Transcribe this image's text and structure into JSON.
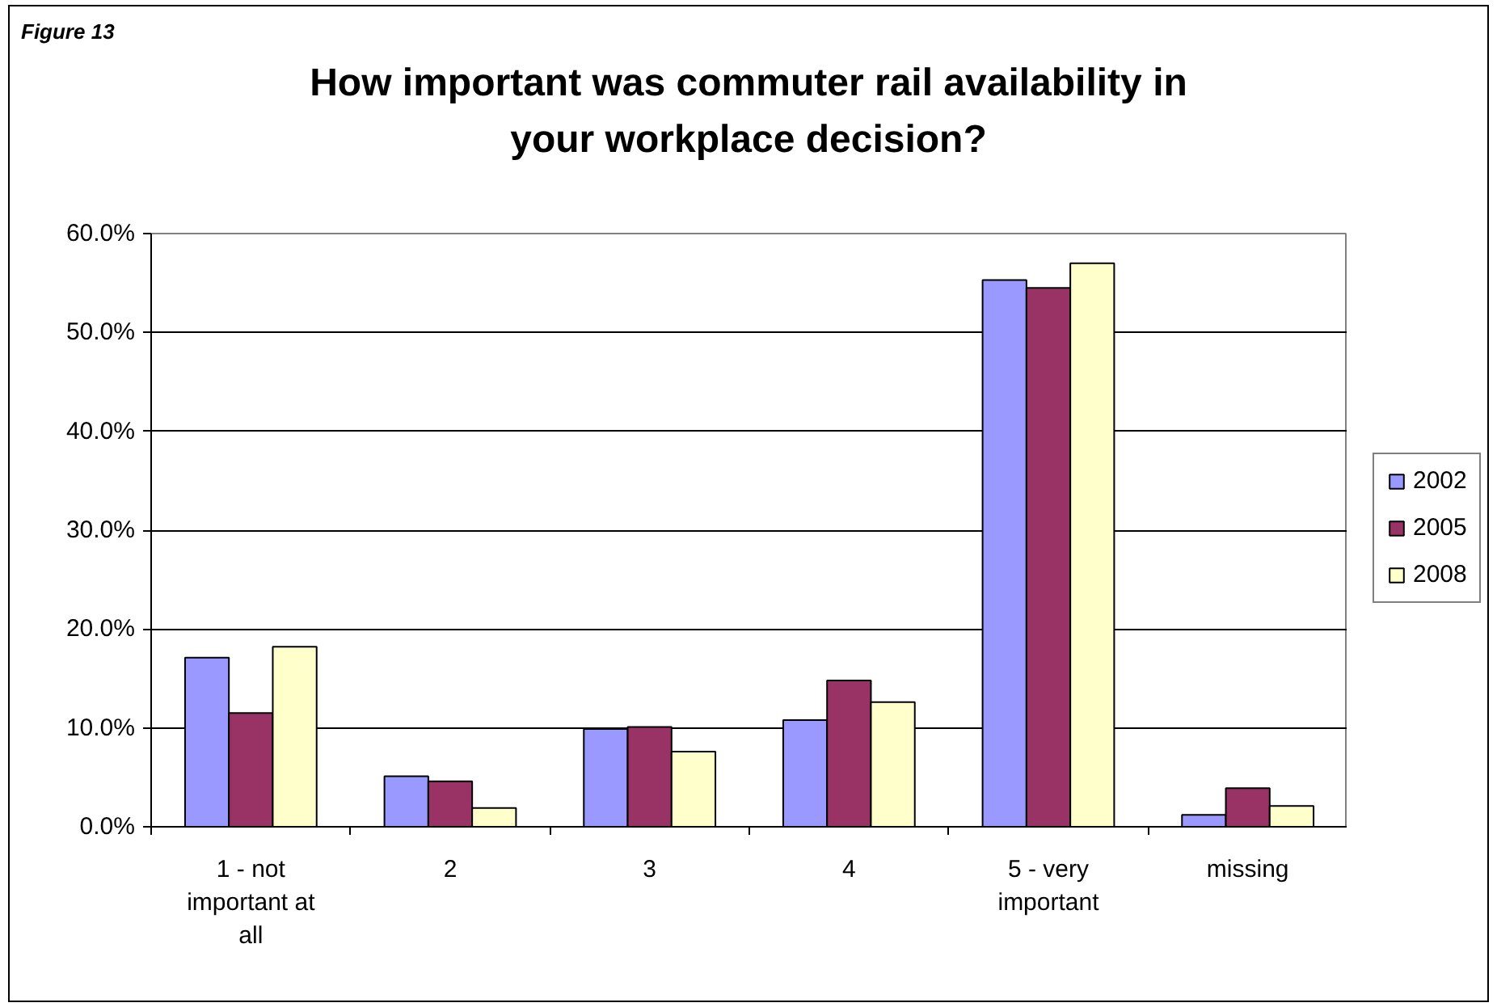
{
  "chart_data": {
    "type": "bar",
    "title": "How important was commuter rail availability in your workplace decision?",
    "annotations": [
      "Figure 13"
    ],
    "categories": [
      "1 - not important at all",
      "2",
      "3",
      "4",
      "5 - very important",
      "missing"
    ],
    "series": [
      {
        "name": "2002",
        "color": "#9999ff",
        "values": [
          17.1,
          5.1,
          9.9,
          10.8,
          55.3,
          1.2
        ]
      },
      {
        "name": "2005",
        "color": "#993366",
        "values": [
          11.5,
          4.6,
          10.1,
          14.8,
          54.5,
          3.9
        ]
      },
      {
        "name": "2008",
        "color": "#ffffcc",
        "values": [
          18.2,
          1.9,
          7.6,
          12.6,
          57.0,
          2.1
        ]
      }
    ],
    "ylim": [
      0,
      60
    ],
    "yticks": [
      {
        "value": 0,
        "label": "0.0%"
      },
      {
        "value": 10,
        "label": "10.0%"
      },
      {
        "value": 20,
        "label": "20.0%"
      },
      {
        "value": 30,
        "label": "30.0%"
      },
      {
        "value": 40,
        "label": "40.0%"
      },
      {
        "value": 50,
        "label": "50.0%"
      },
      {
        "value": 60,
        "label": "60.0%"
      }
    ],
    "grid": "y",
    "legend": "right"
  }
}
